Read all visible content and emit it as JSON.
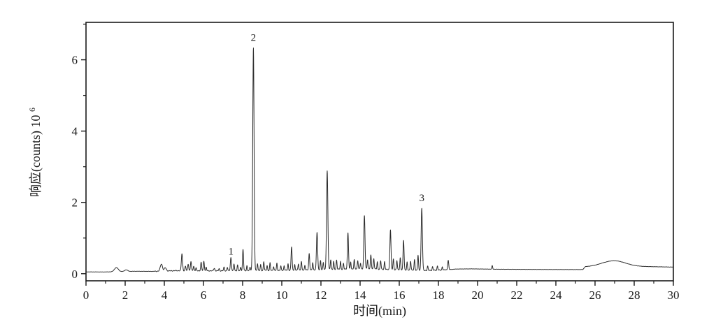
{
  "figure": {
    "background": "#ffffff"
  },
  "chart_data": {
    "type": "line",
    "title": "",
    "xlabel": "时间(min)",
    "ylabel_base": "响应(counts) 10",
    "ylabel_superscript": "6",
    "xlim": [
      0,
      30
    ],
    "ylim": [
      -0.2,
      7.05
    ],
    "x_major_ticks": [
      0,
      2,
      4,
      6,
      8,
      10,
      12,
      14,
      16,
      18,
      20,
      22,
      24,
      26,
      28,
      30
    ],
    "x_minor_ticks": [
      1,
      3,
      5,
      7,
      9,
      11,
      13,
      15,
      17,
      19,
      21,
      23,
      25,
      27,
      29
    ],
    "y_major_ticks": [
      0,
      2,
      4,
      6
    ],
    "y_minor_ticks": [
      1,
      3,
      5,
      7
    ],
    "grid": false,
    "legend": null,
    "line_color": "#2b2b2b",
    "axis_color": "#1a1a1a",
    "noise_amplitude": 0.012,
    "labeled_peaks": [
      {
        "label": "1",
        "time_min": 7.4,
        "apex_e6": 0.45,
        "label_v_e6": 0.63
      },
      {
        "label": "2",
        "time_min": 8.55,
        "apex_e6": 6.33,
        "label_v_e6": 6.63
      },
      {
        "label": "3",
        "time_min": 17.15,
        "apex_e6": 1.84,
        "label_v_e6": 2.13
      }
    ],
    "baseline_nodes": [
      [
        0,
        0.05
      ],
      [
        0.9,
        0.048
      ],
      [
        1.15,
        0.05
      ],
      [
        2.5,
        0.068
      ],
      [
        3.4,
        0.065
      ],
      [
        4.6,
        0.085
      ],
      [
        7.0,
        0.08
      ],
      [
        9.0,
        0.09
      ],
      [
        11.0,
        0.1
      ],
      [
        12.5,
        0.12
      ],
      [
        13.5,
        0.13
      ],
      [
        14.5,
        0.14
      ],
      [
        15.2,
        0.12
      ],
      [
        16.5,
        0.1
      ],
      [
        17.35,
        0.09
      ],
      [
        18.2,
        0.1
      ],
      [
        18.9,
        0.13
      ],
      [
        19.7,
        0.135
      ],
      [
        21.0,
        0.125
      ],
      [
        23.5,
        0.118
      ],
      [
        25.38,
        0.115
      ],
      [
        25.5,
        0.195
      ],
      [
        25.95,
        0.21
      ],
      [
        26.35,
        0.225
      ],
      [
        28.6,
        0.2
      ],
      [
        30,
        0.185
      ]
    ],
    "peaks": [
      [
        1.55,
        0.115,
        0.1
      ],
      [
        2.05,
        0.045,
        0.08
      ],
      [
        3.85,
        0.2,
        0.055
      ],
      [
        4.05,
        0.09,
        0.05
      ],
      [
        4.9,
        0.48,
        0.03
      ],
      [
        5.08,
        0.12,
        0.025
      ],
      [
        5.22,
        0.19,
        0.025
      ],
      [
        5.36,
        0.26,
        0.025
      ],
      [
        5.5,
        0.13,
        0.025
      ],
      [
        5.62,
        0.08,
        0.02
      ],
      [
        5.88,
        0.23,
        0.025
      ],
      [
        6.02,
        0.27,
        0.025
      ],
      [
        6.14,
        0.1,
        0.02
      ],
      [
        6.55,
        0.07,
        0.03
      ],
      [
        6.8,
        0.06,
        0.025
      ],
      [
        7.05,
        0.1,
        0.025
      ],
      [
        7.22,
        0.1,
        0.02
      ],
      [
        7.4,
        0.37,
        0.028
      ],
      [
        7.56,
        0.19,
        0.022
      ],
      [
        7.74,
        0.16,
        0.022
      ],
      [
        7.9,
        0.1,
        0.02
      ],
      [
        8.02,
        0.6,
        0.024
      ],
      [
        8.22,
        0.14,
        0.02
      ],
      [
        8.38,
        0.1,
        0.02
      ],
      [
        8.55,
        6.25,
        0.034
      ],
      [
        8.76,
        0.2,
        0.02
      ],
      [
        8.92,
        0.16,
        0.02
      ],
      [
        9.08,
        0.25,
        0.022
      ],
      [
        9.25,
        0.14,
        0.02
      ],
      [
        9.4,
        0.21,
        0.02
      ],
      [
        9.58,
        0.11,
        0.02
      ],
      [
        9.75,
        0.2,
        0.02
      ],
      [
        9.95,
        0.12,
        0.02
      ],
      [
        10.12,
        0.13,
        0.02
      ],
      [
        10.32,
        0.18,
        0.02
      ],
      [
        10.5,
        0.66,
        0.026
      ],
      [
        10.66,
        0.16,
        0.02
      ],
      [
        10.85,
        0.18,
        0.022
      ],
      [
        11.0,
        0.24,
        0.022
      ],
      [
        11.18,
        0.14,
        0.02
      ],
      [
        11.4,
        0.46,
        0.024
      ],
      [
        11.58,
        0.2,
        0.02
      ],
      [
        11.8,
        1.05,
        0.03
      ],
      [
        11.98,
        0.26,
        0.02
      ],
      [
        12.12,
        0.2,
        0.02
      ],
      [
        12.32,
        2.76,
        0.034
      ],
      [
        12.5,
        0.28,
        0.022
      ],
      [
        12.65,
        0.22,
        0.02
      ],
      [
        12.8,
        0.26,
        0.022
      ],
      [
        13.0,
        0.22,
        0.02
      ],
      [
        13.15,
        0.16,
        0.02
      ],
      [
        13.38,
        1.02,
        0.028
      ],
      [
        13.52,
        0.2,
        0.02
      ],
      [
        13.7,
        0.26,
        0.022
      ],
      [
        13.88,
        0.24,
        0.022
      ],
      [
        14.02,
        0.16,
        0.02
      ],
      [
        14.22,
        1.5,
        0.03
      ],
      [
        14.38,
        0.26,
        0.02
      ],
      [
        14.55,
        0.38,
        0.024
      ],
      [
        14.7,
        0.3,
        0.022
      ],
      [
        14.88,
        0.2,
        0.02
      ],
      [
        15.05,
        0.24,
        0.022
      ],
      [
        15.25,
        0.22,
        0.022
      ],
      [
        15.55,
        1.12,
        0.028
      ],
      [
        15.7,
        0.3,
        0.022
      ],
      [
        15.88,
        0.26,
        0.022
      ],
      [
        16.05,
        0.34,
        0.022
      ],
      [
        16.22,
        0.84,
        0.026
      ],
      [
        16.4,
        0.22,
        0.02
      ],
      [
        16.58,
        0.26,
        0.022
      ],
      [
        16.78,
        0.3,
        0.022
      ],
      [
        16.96,
        0.42,
        0.022
      ],
      [
        17.15,
        1.75,
        0.032
      ],
      [
        17.45,
        0.12,
        0.022
      ],
      [
        17.7,
        0.1,
        0.022
      ],
      [
        17.95,
        0.12,
        0.022
      ],
      [
        18.2,
        0.1,
        0.02
      ],
      [
        18.5,
        0.26,
        0.026
      ],
      [
        20.75,
        0.1,
        0.02
      ],
      [
        27.0,
        0.145,
        0.55
      ]
    ]
  }
}
